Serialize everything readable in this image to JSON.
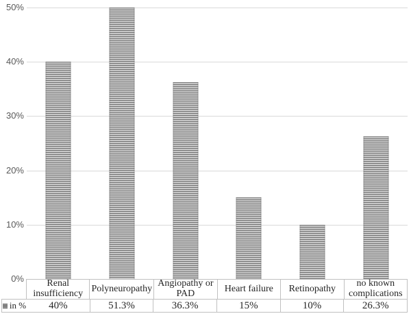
{
  "chart_data": {
    "type": "bar",
    "categories": [
      "Renal insufficiency",
      "Polyneuropathy",
      "Angiopathy or PAD",
      "Heart failure",
      "Retinopathy",
      "no known complications"
    ],
    "series": [
      {
        "name": "in %",
        "values": [
          40,
          51.3,
          36.3,
          15,
          10,
          26.3
        ]
      }
    ],
    "value_labels": [
      "40%",
      "51.3%",
      "36.3%",
      "15%",
      "10%",
      "26.3%"
    ],
    "title": "",
    "xlabel": "",
    "ylabel": "",
    "ylim": [
      0,
      50
    ],
    "ytick_labels": [
      "0%",
      "10%",
      "20%",
      "30%",
      "40%",
      "50%"
    ],
    "grid": true,
    "legend": {
      "label": "in %",
      "position": "bottom-left-table-key"
    },
    "note": "bar with value 51.3% is clipped at the 50% axis maximum",
    "style": {
      "bar_pattern": "horizontal-stripes",
      "stripe_dark": "#737373",
      "stripe_light": "#c8c8c8",
      "gridline_color": "#d9d9d9",
      "table_border_color": "#c0c0c0",
      "axis_text_color": "#595959",
      "table_text_color": "#262626"
    }
  }
}
